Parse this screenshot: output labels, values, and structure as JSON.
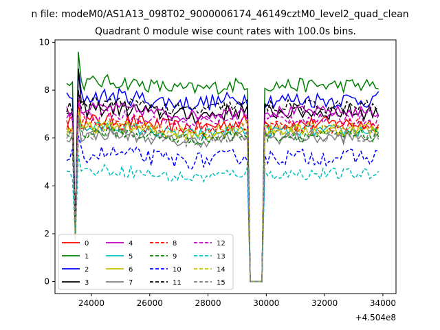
{
  "chart_data": {
    "type": "line",
    "suptitle": "n file: modeM0/AS1A13_098T02_9000006174_46149cztM0_level2_quad_clean",
    "title": "Quadrant 0 module wise count rates with 100.0s bins.",
    "xlabel": "",
    "ylabel": "",
    "x_offset_label": "+4.504e8",
    "xlim": [
      22750,
      34450
    ],
    "ylim": [
      -0.5,
      10.1
    ],
    "xticks": [
      24000,
      26000,
      28000,
      30000,
      32000,
      34000
    ],
    "yticks": [
      0,
      2,
      4,
      6,
      8,
      10
    ],
    "x_start": 23150,
    "x_step": 100,
    "n_points": 108,
    "dip_samples": 5,
    "gap_index": 63,
    "grid": false,
    "legend_position": "lower-left",
    "series": [
      {
        "name": "0",
        "color": "#ff0000",
        "dash": false,
        "level": 6.6,
        "peak": 7.6,
        "noise": 0.3
      },
      {
        "name": "1",
        "color": "#008000",
        "dash": false,
        "level": 8.2,
        "peak": 9.6,
        "noise": 0.3
      },
      {
        "name": "2",
        "color": "#0000ff",
        "dash": false,
        "level": 7.6,
        "peak": 8.9,
        "noise": 0.35
      },
      {
        "name": "3",
        "color": "#000000",
        "dash": false,
        "level": 7.1,
        "peak": 8.9,
        "noise": 0.35
      },
      {
        "name": "4",
        "color": "#bf00bf",
        "dash": false,
        "level": 7.1,
        "peak": 8.0,
        "noise": 0.25
      },
      {
        "name": "5",
        "color": "#00bfbf",
        "dash": false,
        "level": 6.3,
        "peak": 7.0,
        "noise": 0.25
      },
      {
        "name": "6",
        "color": "#bfbf00",
        "dash": false,
        "level": 6.3,
        "peak": 7.2,
        "noise": 0.25
      },
      {
        "name": "7",
        "color": "#808080",
        "dash": false,
        "level": 6.0,
        "peak": 6.8,
        "noise": 0.25
      },
      {
        "name": "8",
        "color": "#ff0000",
        "dash": true,
        "level": 6.5,
        "peak": 7.3,
        "noise": 0.3
      },
      {
        "name": "9",
        "color": "#008000",
        "dash": true,
        "level": 6.1,
        "peak": 7.0,
        "noise": 0.25
      },
      {
        "name": "10",
        "color": "#0000ff",
        "dash": true,
        "level": 5.2,
        "peak": 6.1,
        "noise": 0.35
      },
      {
        "name": "11",
        "color": "#000000",
        "dash": true,
        "level": 7.3,
        "peak": 8.0,
        "noise": 0.3
      },
      {
        "name": "12",
        "color": "#bf00bf",
        "dash": true,
        "level": 6.8,
        "peak": 7.5,
        "noise": 0.25
      },
      {
        "name": "13",
        "color": "#00bfbf",
        "dash": true,
        "level": 4.5,
        "peak": 5.3,
        "noise": 0.25
      },
      {
        "name": "14",
        "color": "#bfbf00",
        "dash": true,
        "level": 6.4,
        "peak": 7.2,
        "noise": 0.25
      },
      {
        "name": "15",
        "color": "#808080",
        "dash": true,
        "level": 6.1,
        "peak": 6.9,
        "noise": 0.3
      }
    ]
  }
}
